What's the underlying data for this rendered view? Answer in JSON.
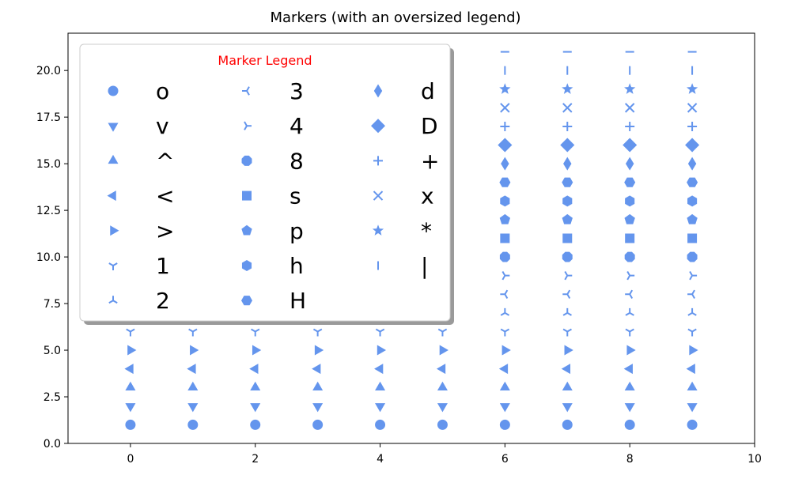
{
  "chart_data": {
    "type": "scatter",
    "title": "Markers (with an oversized legend)",
    "xlabel": "",
    "ylabel": "",
    "xlim": [
      -1,
      10
    ],
    "ylim": [
      0,
      22
    ],
    "x_ticks": [
      0,
      2,
      4,
      6,
      8,
      10
    ],
    "x_tick_labels": [
      "0",
      "2",
      "4",
      "6",
      "8",
      "10"
    ],
    "y_ticks": [
      0,
      2.5,
      5,
      7.5,
      10,
      12.5,
      15,
      17.5,
      20
    ],
    "y_tick_labels": [
      "0.0",
      "2.5",
      "5.0",
      "7.5",
      "10.0",
      "12.5",
      "15.0",
      "17.5",
      "20.0"
    ],
    "grid": false,
    "marker_color": "#6495ED",
    "series": [
      {
        "name": "o",
        "marker": "o",
        "x": [
          0,
          1,
          2,
          3,
          4,
          5,
          6,
          7,
          8,
          9
        ],
        "y": [
          1,
          1,
          1,
          1,
          1,
          1,
          1,
          1,
          1,
          1
        ]
      },
      {
        "name": "v",
        "marker": "v",
        "x": [
          0,
          1,
          2,
          3,
          4,
          5,
          6,
          7,
          8,
          9
        ],
        "y": [
          2,
          2,
          2,
          2,
          2,
          2,
          2,
          2,
          2,
          2
        ]
      },
      {
        "name": "^",
        "marker": "^",
        "x": [
          0,
          1,
          2,
          3,
          4,
          5,
          6,
          7,
          8,
          9
        ],
        "y": [
          3,
          3,
          3,
          3,
          3,
          3,
          3,
          3,
          3,
          3
        ]
      },
      {
        "name": "<",
        "marker": "<",
        "x": [
          0,
          1,
          2,
          3,
          4,
          5,
          6,
          7,
          8,
          9
        ],
        "y": [
          4,
          4,
          4,
          4,
          4,
          4,
          4,
          4,
          4,
          4
        ]
      },
      {
        "name": ">",
        "marker": ">",
        "x": [
          0,
          1,
          2,
          3,
          4,
          5,
          6,
          7,
          8,
          9
        ],
        "y": [
          5,
          5,
          5,
          5,
          5,
          5,
          5,
          5,
          5,
          5
        ]
      },
      {
        "name": "1",
        "marker": "1",
        "x": [
          0,
          1,
          2,
          3,
          4,
          5,
          6,
          7,
          8,
          9
        ],
        "y": [
          6,
          6,
          6,
          6,
          6,
          6,
          6,
          6,
          6,
          6
        ]
      },
      {
        "name": "2",
        "marker": "2",
        "x": [
          0,
          1,
          2,
          3,
          4,
          5,
          6,
          7,
          8,
          9
        ],
        "y": [
          7,
          7,
          7,
          7,
          7,
          7,
          7,
          7,
          7,
          7
        ]
      },
      {
        "name": "3",
        "marker": "3",
        "x": [
          0,
          1,
          2,
          3,
          4,
          5,
          6,
          7,
          8,
          9
        ],
        "y": [
          8,
          8,
          8,
          8,
          8,
          8,
          8,
          8,
          8,
          8
        ]
      },
      {
        "name": "4",
        "marker": "4",
        "x": [
          0,
          1,
          2,
          3,
          4,
          5,
          6,
          7,
          8,
          9
        ],
        "y": [
          9,
          9,
          9,
          9,
          9,
          9,
          9,
          9,
          9,
          9
        ]
      },
      {
        "name": "8",
        "marker": "8",
        "x": [
          0,
          1,
          2,
          3,
          4,
          5,
          6,
          7,
          8,
          9
        ],
        "y": [
          10,
          10,
          10,
          10,
          10,
          10,
          10,
          10,
          10,
          10
        ]
      },
      {
        "name": "s",
        "marker": "s",
        "x": [
          0,
          1,
          2,
          3,
          4,
          5,
          6,
          7,
          8,
          9
        ],
        "y": [
          11,
          11,
          11,
          11,
          11,
          11,
          11,
          11,
          11,
          11
        ]
      },
      {
        "name": "p",
        "marker": "p",
        "x": [
          0,
          1,
          2,
          3,
          4,
          5,
          6,
          7,
          8,
          9
        ],
        "y": [
          12,
          12,
          12,
          12,
          12,
          12,
          12,
          12,
          12,
          12
        ]
      },
      {
        "name": "h",
        "marker": "h",
        "x": [
          0,
          1,
          2,
          3,
          4,
          5,
          6,
          7,
          8,
          9
        ],
        "y": [
          13,
          13,
          13,
          13,
          13,
          13,
          13,
          13,
          13,
          13
        ]
      },
      {
        "name": "H",
        "marker": "H",
        "x": [
          0,
          1,
          2,
          3,
          4,
          5,
          6,
          7,
          8,
          9
        ],
        "y": [
          14,
          14,
          14,
          14,
          14,
          14,
          14,
          14,
          14,
          14
        ]
      },
      {
        "name": "d",
        "marker": "d",
        "x": [
          0,
          1,
          2,
          3,
          4,
          5,
          6,
          7,
          8,
          9
        ],
        "y": [
          15,
          15,
          15,
          15,
          15,
          15,
          15,
          15,
          15,
          15
        ]
      },
      {
        "name": "D",
        "marker": "D",
        "x": [
          0,
          1,
          2,
          3,
          4,
          5,
          6,
          7,
          8,
          9
        ],
        "y": [
          16,
          16,
          16,
          16,
          16,
          16,
          16,
          16,
          16,
          16
        ]
      },
      {
        "name": "+",
        "marker": "+",
        "x": [
          0,
          1,
          2,
          3,
          4,
          5,
          6,
          7,
          8,
          9
        ],
        "y": [
          17,
          17,
          17,
          17,
          17,
          17,
          17,
          17,
          17,
          17
        ]
      },
      {
        "name": "x",
        "marker": "x",
        "x": [
          0,
          1,
          2,
          3,
          4,
          5,
          6,
          7,
          8,
          9
        ],
        "y": [
          18,
          18,
          18,
          18,
          18,
          18,
          18,
          18,
          18,
          18
        ]
      },
      {
        "name": "*",
        "marker": "*",
        "x": [
          0,
          1,
          2,
          3,
          4,
          5,
          6,
          7,
          8,
          9
        ],
        "y": [
          19,
          19,
          19,
          19,
          19,
          19,
          19,
          19,
          19,
          19
        ]
      },
      {
        "name": "|",
        "marker": "|",
        "x": [
          0,
          1,
          2,
          3,
          4,
          5,
          6,
          7,
          8,
          9
        ],
        "y": [
          20,
          20,
          20,
          20,
          20,
          20,
          20,
          20,
          20,
          20
        ]
      },
      {
        "name": "_",
        "marker": "_",
        "x": [
          0,
          1,
          2,
          3,
          4,
          5,
          6,
          7,
          8,
          9
        ],
        "y": [
          21,
          21,
          21,
          21,
          21,
          21,
          21,
          21,
          21,
          21
        ]
      }
    ],
    "legend": {
      "title": "Marker Legend",
      "title_color": "#FF0000",
      "placement": "upper-left",
      "columns": 3,
      "shadow": true,
      "entries": [
        "o",
        "v",
        "^",
        "<",
        ">",
        "1",
        "2",
        "3",
        "4",
        "8",
        "s",
        "p",
        "h",
        "H",
        "d",
        "D",
        "+",
        "x",
        "*",
        "|"
      ]
    }
  }
}
